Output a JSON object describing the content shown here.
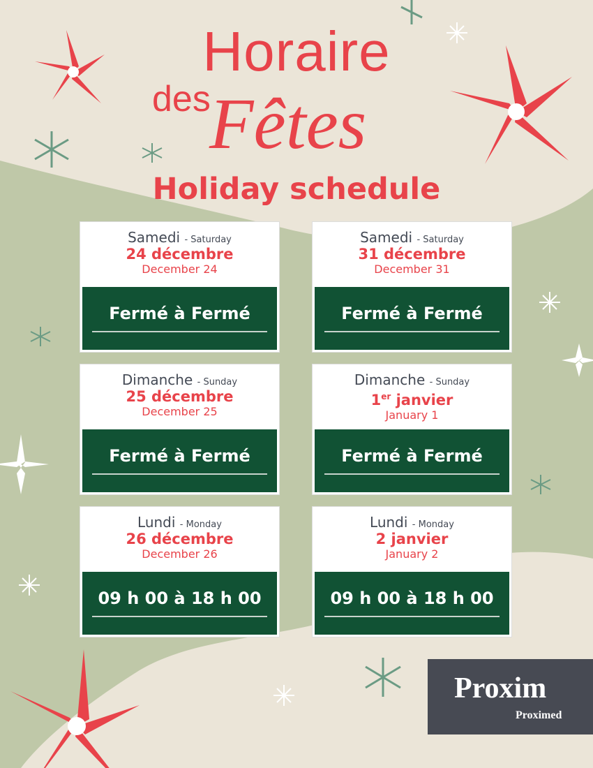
{
  "title": {
    "line1": "Horaire",
    "line2a": "des",
    "line2b": "Fêtes",
    "subtitle": "Holiday schedule"
  },
  "days": [
    {
      "day_fr": "Samedi",
      "day_en": "- Saturday",
      "date_fr": "24 décembre",
      "date_en": "December 24",
      "hours": "Fermé à Fermé"
    },
    {
      "day_fr": "Samedi",
      "day_en": "- Saturday",
      "date_fr": "31 décembre",
      "date_en": "December 31",
      "hours": "Fermé à Fermé"
    },
    {
      "day_fr": "Dimanche",
      "day_en": "- Sunday",
      "date_fr": "25 décembre",
      "date_en": "December 25",
      "hours": "Fermé à Fermé"
    },
    {
      "day_fr": "Dimanche",
      "day_en": "- Sunday",
      "date_fr_num": "1",
      "date_fr_sup": "er",
      "date_fr": " janvier",
      "date_en": "January 1",
      "hours": "Fermé à Fermé"
    },
    {
      "day_fr": "Lundi",
      "day_en": "- Monday",
      "date_fr": "26 décembre",
      "date_en": "December 26",
      "hours": "09 h 00 à 18 h 00"
    },
    {
      "day_fr": "Lundi",
      "day_en": "- Monday",
      "date_fr": "2 janvier",
      "date_en": "January 2",
      "hours": "09 h 00 à 18 h 00"
    }
  ],
  "logo": {
    "brand": "Proxim",
    "sub_brand": "Proximed"
  },
  "colors": {
    "accent_red": "#e8434a",
    "dark_green": "#115234",
    "background": "#ebe5d8",
    "sage": "#bfc8a8",
    "logo_bg": "#474a53"
  }
}
